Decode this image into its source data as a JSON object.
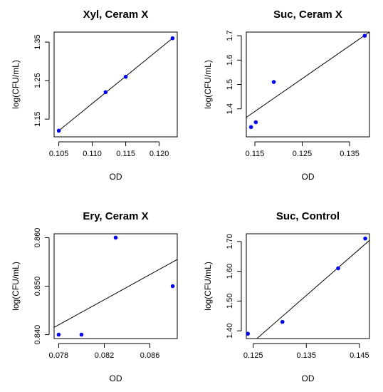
{
  "chart_data": [
    {
      "type": "scatter",
      "title": "Xyl, Ceram X",
      "xlabel": "OD",
      "ylabel": "log(CFU/mL)",
      "xlim": [
        0.1043,
        0.1227
      ],
      "ylim": [
        1.104,
        1.376
      ],
      "xticks": [
        0.105,
        0.11,
        0.115,
        0.12
      ],
      "xtick_labels": [
        "0.105",
        "0.110",
        "0.115",
        "0.120"
      ],
      "yticks": [
        1.15,
        1.25,
        1.35
      ],
      "ytick_labels": [
        "1.15",
        "1.25",
        "1.35"
      ],
      "x": [
        0.105,
        0.112,
        0.115,
        0.122
      ],
      "y": [
        1.12,
        1.22,
        1.26,
        1.36
      ],
      "fit": [
        [
          0.105,
          1.12
        ],
        [
          0.122,
          1.36
        ]
      ],
      "point_color": "#0000ee"
    },
    {
      "type": "scatter",
      "title": "Suc, Ceram X",
      "xlabel": "OD",
      "ylabel": "log(CFU/mL)",
      "xlim": [
        0.1132,
        0.1392
      ],
      "ylim": [
        1.285,
        1.715
      ],
      "xticks": [
        0.115,
        0.125,
        0.135
      ],
      "xtick_labels": [
        "0.115",
        "0.125",
        "0.135"
      ],
      "yticks": [
        1.4,
        1.5,
        1.6,
        1.7
      ],
      "ytick_labels": [
        "1.4",
        "1.5",
        "1.6",
        "1.7"
      ],
      "x": [
        0.1142,
        0.1152,
        0.119,
        0.1382
      ],
      "y": [
        1.325,
        1.345,
        1.51,
        1.7
      ],
      "fit": [
        [
          0.1132,
          1.365
        ],
        [
          0.1392,
          1.715
        ]
      ],
      "point_color": "#0000ee"
    },
    {
      "type": "scatter",
      "title": "Ery, Ceram X",
      "xlabel": "OD",
      "ylabel": "log(CFU/mL)",
      "xlim": [
        0.0776,
        0.0884
      ],
      "ylim": [
        0.8392,
        0.8608
      ],
      "xticks": [
        0.078,
        0.082,
        0.086
      ],
      "xtick_labels": [
        "0.078",
        "0.082",
        "0.086"
      ],
      "yticks": [
        0.84,
        0.85,
        0.86
      ],
      "ytick_labels": [
        "0.840",
        "0.850",
        "0.860"
      ],
      "x": [
        0.078,
        0.08,
        0.083,
        0.088
      ],
      "y": [
        0.84,
        0.84,
        0.86,
        0.85
      ],
      "fit": [
        [
          0.0776,
          0.8415
        ],
        [
          0.0884,
          0.8555
        ]
      ],
      "point_color": "#0000ee"
    },
    {
      "type": "scatter",
      "title": "Suc, Control",
      "xlabel": "OD",
      "ylabel": "log(CFU/mL)",
      "xlim": [
        0.1237,
        0.1469
      ],
      "ylim": [
        1.374,
        1.726
      ],
      "xticks": [
        0.125,
        0.135,
        0.145
      ],
      "xtick_labels": [
        "0.125",
        "0.135",
        "0.145"
      ],
      "yticks": [
        1.4,
        1.5,
        1.6,
        1.7
      ],
      "ytick_labels": [
        "1.40",
        "1.50",
        "1.60",
        "1.70"
      ],
      "x": [
        0.124,
        0.1305,
        0.141,
        0.1461
      ],
      "y": [
        1.39,
        1.43,
        1.61,
        1.71
      ],
      "fit": [
        [
          0.1257,
          1.374
        ],
        [
          0.1469,
          1.704
        ]
      ],
      "point_color": "#0000ee"
    }
  ]
}
